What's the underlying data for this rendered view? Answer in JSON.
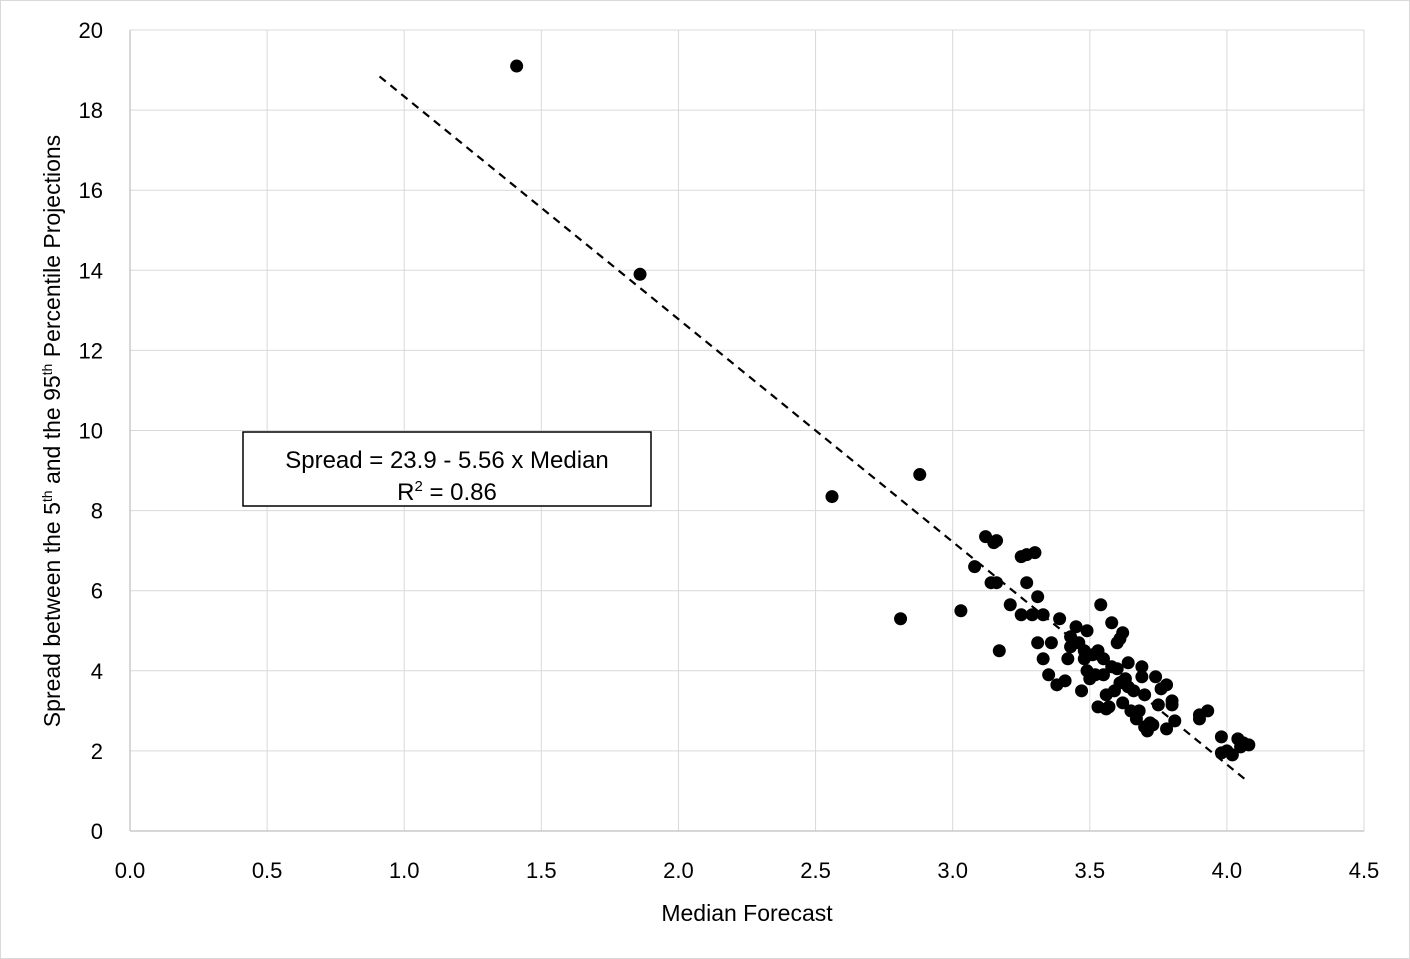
{
  "chart_data": {
    "type": "scatter",
    "xlabel": "Median Forecast",
    "ylabel": {
      "parts": [
        {
          "text": "Spread between the 5",
          "sup": false
        },
        {
          "text": "th",
          "sup": true
        },
        {
          "text": " and the 95",
          "sup": false
        },
        {
          "text": "th",
          "sup": true
        },
        {
          "text": " Percentile Projections",
          "sup": false
        }
      ]
    },
    "xlim": [
      0,
      4.5
    ],
    "ylim": [
      0,
      20
    ],
    "x_ticks": [
      "0.0",
      "0.5",
      "1.0",
      "1.5",
      "2.0",
      "2.5",
      "3.0",
      "3.5",
      "4.0",
      "4.5"
    ],
    "y_ticks": [
      "0",
      "2",
      "4",
      "6",
      "8",
      "10",
      "12",
      "14",
      "16",
      "18",
      "20"
    ],
    "grid": true,
    "legend": "none",
    "marker_color": "#000000",
    "trendline": {
      "style": "dashed",
      "color": "#000000",
      "intercept": 23.9,
      "slope": -5.56,
      "x_range": [
        0.91,
        4.08
      ]
    },
    "annotation": {
      "equation": "Spread = 23.9 - 5.56 x Median",
      "r2_prefix": "R",
      "r2_sup": "2",
      "r2_value": " = 0.86"
    },
    "points": [
      [
        1.41,
        19.1
      ],
      [
        1.86,
        13.9
      ],
      [
        2.56,
        8.35
      ],
      [
        2.88,
        8.9
      ],
      [
        2.81,
        5.3
      ],
      [
        3.03,
        5.5
      ],
      [
        3.08,
        6.6
      ],
      [
        3.12,
        7.35
      ],
      [
        3.15,
        7.2
      ],
      [
        3.16,
        7.25
      ],
      [
        3.14,
        6.2
      ],
      [
        3.16,
        6.2
      ],
      [
        3.17,
        4.5
      ],
      [
        3.21,
        5.65
      ],
      [
        3.25,
        6.85
      ],
      [
        3.27,
        6.9
      ],
      [
        3.3,
        6.95
      ],
      [
        3.27,
        6.2
      ],
      [
        3.25,
        5.4
      ],
      [
        3.29,
        5.4
      ],
      [
        3.31,
        5.85
      ],
      [
        3.33,
        5.4
      ],
      [
        3.31,
        4.7
      ],
      [
        3.33,
        4.3
      ],
      [
        3.35,
        3.9
      ],
      [
        3.36,
        4.7
      ],
      [
        3.38,
        3.65
      ],
      [
        3.39,
        5.3
      ],
      [
        3.41,
        3.75
      ],
      [
        3.42,
        4.3
      ],
      [
        3.43,
        4.85
      ],
      [
        3.43,
        4.6
      ],
      [
        3.45,
        5.1
      ],
      [
        3.46,
        4.7
      ],
      [
        3.47,
        3.5
      ],
      [
        3.48,
        4.5
      ],
      [
        3.48,
        4.3
      ],
      [
        3.49,
        4.0
      ],
      [
        3.49,
        5.0
      ],
      [
        3.5,
        3.8
      ],
      [
        3.51,
        4.4
      ],
      [
        3.52,
        3.9
      ],
      [
        3.53,
        3.1
      ],
      [
        3.53,
        4.5
      ],
      [
        3.54,
        5.65
      ],
      [
        3.55,
        4.3
      ],
      [
        3.55,
        3.9
      ],
      [
        3.56,
        3.4
      ],
      [
        3.56,
        3.05
      ],
      [
        3.57,
        3.1
      ],
      [
        3.58,
        5.2
      ],
      [
        3.58,
        4.1
      ],
      [
        3.59,
        3.5
      ],
      [
        3.6,
        4.7
      ],
      [
        3.6,
        4.05
      ],
      [
        3.61,
        4.8
      ],
      [
        3.61,
        3.7
      ],
      [
        3.62,
        4.95
      ],
      [
        3.62,
        3.2
      ],
      [
        3.63,
        3.8
      ],
      [
        3.64,
        4.2
      ],
      [
        3.64,
        3.6
      ],
      [
        3.65,
        3.0
      ],
      [
        3.66,
        3.5
      ],
      [
        3.67,
        2.8
      ],
      [
        3.68,
        3.0
      ],
      [
        3.69,
        4.1
      ],
      [
        3.69,
        3.85
      ],
      [
        3.7,
        3.4
      ],
      [
        3.7,
        2.6
      ],
      [
        3.71,
        2.5
      ],
      [
        3.72,
        2.7
      ],
      [
        3.73,
        2.65
      ],
      [
        3.74,
        3.85
      ],
      [
        3.75,
        3.15
      ],
      [
        3.76,
        3.55
      ],
      [
        3.78,
        3.65
      ],
      [
        3.78,
        2.55
      ],
      [
        3.8,
        3.25
      ],
      [
        3.8,
        3.15
      ],
      [
        3.81,
        2.75
      ],
      [
        3.9,
        2.8
      ],
      [
        3.9,
        2.9
      ],
      [
        3.93,
        3.0
      ],
      [
        3.98,
        2.35
      ],
      [
        3.98,
        1.95
      ],
      [
        4.0,
        2.0
      ],
      [
        4.02,
        1.9
      ],
      [
        4.04,
        2.3
      ],
      [
        4.05,
        2.1
      ],
      [
        4.06,
        2.2
      ],
      [
        4.08,
        2.15
      ]
    ]
  }
}
